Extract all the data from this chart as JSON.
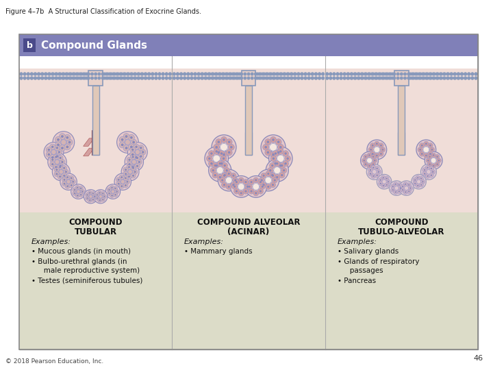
{
  "figure_title": "Figure 4–7b  A Structural Classification of Exocrine Glands.",
  "section_label": "b",
  "section_title": "Compound Glands",
  "page_number": "46",
  "copyright": "© 2018 Pearson Education, Inc.",
  "bg_color": "#ffffff",
  "header_bg": "#8080b8",
  "header_text_color": "#ffffff",
  "label_box_color": "#4a4a8a",
  "content_bg": "#e8e8d0",
  "image_bg": "#f5e8e0",
  "panel_border_color": "#aaaaaa",
  "columns": [
    {
      "title_line1": "COMPOUND",
      "title_line2": "TUBULAR",
      "examples_label": "Examples:",
      "bullets": [
        "Mucous glands (in mouth)",
        "Bulbo-urethral glands (in\n   male reproductive system)",
        "Testes (seminiferous tubules)"
      ]
    },
    {
      "title_line1": "COMPOUND ALVEOLAR",
      "title_line2": "(ACINAR)",
      "examples_label": "Examples:",
      "bullets": [
        "Mammary glands"
      ]
    },
    {
      "title_line1": "COMPOUND",
      "title_line2": "TUBULO-ALVEOLAR",
      "examples_label": "Examples:",
      "bullets": [
        "Salivary glands",
        "Glands of respiratory\n   passages",
        "Pancreas"
      ]
    }
  ]
}
